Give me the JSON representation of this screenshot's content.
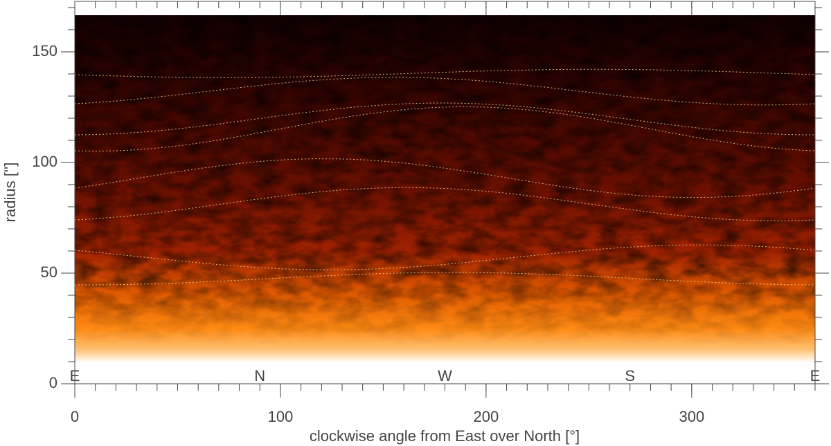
{
  "chart_data": {
    "type": "heatmap",
    "xlabel": "clockwise angle from East over North [°]",
    "ylabel": "radius ['']",
    "xlim": [
      0,
      360
    ],
    "ylim": [
      0,
      172.8
    ],
    "xticks": [
      0,
      100,
      200,
      300
    ],
    "yticks": [
      0,
      50,
      100,
      150
    ],
    "xminorticks": [
      0,
      10,
      20,
      30,
      40,
      50,
      60,
      70,
      80,
      90,
      100,
      110,
      120,
      130,
      140,
      150,
      160,
      170,
      180,
      190,
      200,
      210,
      220,
      230,
      240,
      250,
      260,
      270,
      280,
      290,
      300,
      310,
      320,
      330,
      340,
      350,
      360
    ],
    "yminorticks": [
      0,
      10,
      20,
      30,
      40,
      50,
      60,
      70,
      80,
      90,
      100,
      110,
      120,
      130,
      140,
      150,
      160,
      170
    ],
    "annotations": [
      {
        "text": "E",
        "x": 0,
        "y": 3
      },
      {
        "text": "N",
        "x": 90,
        "y": 3
      },
      {
        "text": "W",
        "x": 180,
        "y": 3
      },
      {
        "text": "S",
        "x": 270,
        "y": 3
      },
      {
        "text": "E",
        "x": 360,
        "y": 3
      }
    ]
  }
}
